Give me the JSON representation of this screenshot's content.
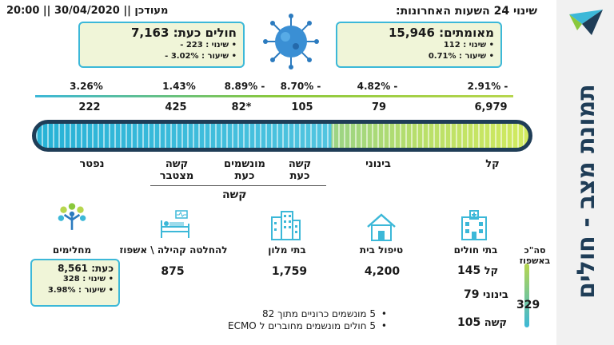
{
  "header": {
    "date": "מעודכן || 30/04/2020 || 20:00",
    "title": "שינוי 24 השעות האחרונות:"
  },
  "sidebar": {
    "title": "תמונת מצב - חולים"
  },
  "confirmed": {
    "label": "מאומתים: 15,946",
    "change_label": "• שינוי : 112",
    "rate_label": "• שיעור : 0.71%"
  },
  "sick_now": {
    "label": "חולים כעת: 7,163",
    "change_label": "• שינוי : 223 -",
    "rate_label": "• שיעור : 3.02% -"
  },
  "percent_changes": [
    "2.91% -",
    "4.82% -",
    "8.70% -",
    "8.89% -",
    "1.43%",
    "3.26%"
  ],
  "counts": [
    "6,979",
    "79",
    "105",
    "82*",
    "425",
    "222"
  ],
  "categories": {
    "mild": "קל",
    "moderate": "בינוני",
    "severe_now": "קשה כעת",
    "ventilated_now": "מונשמים כעת",
    "severe_cumulative": "קשה מצטבר",
    "deceased": "נפטר",
    "severe_group": "קשה"
  },
  "locations": {
    "hospitals": {
      "label": "בתי חולים"
    },
    "home": {
      "label": "טיפול בית",
      "value": "4,200"
    },
    "hotels": {
      "label": "בתי מלון",
      "value": "1,759"
    },
    "community": {
      "label": "להחלטה קהילה \\ אשפוז",
      "value": "875"
    }
  },
  "hospital_breakdown": {
    "total_label": "סה\"כ באשפוז",
    "total": "329",
    "rows": [
      {
        "label": "קל",
        "value": "145"
      },
      {
        "label": "בינוני",
        "value": "79"
      },
      {
        "label": "קשה",
        "value": "105"
      }
    ]
  },
  "recovered": {
    "label": "מחלימים",
    "now_label": "כעת: 8,561",
    "change_label": "• שינוי : 328",
    "rate_label": "• שיעור : 3.98%"
  },
  "notes": [
    "5 מונשמים כרוניים מתוך 82",
    "5 חולים מונשמים מחוברים ל ECMO"
  ],
  "colors": {
    "accent_blue": "#3cb8d8",
    "accent_green": "#8ac83c",
    "navy": "#1f3d57",
    "box_fill": "#f0f5d8"
  }
}
